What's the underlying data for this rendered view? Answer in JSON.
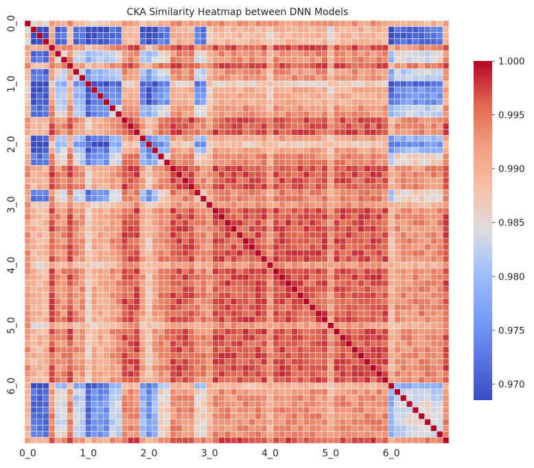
{
  "chart_data": {
    "type": "heatmap",
    "title": "CKA Similarity Heatmap between DNN Models",
    "x_tick_labels": [
      "0_0",
      "1_0",
      "2_0",
      "3_0",
      "4_0",
      "5_0",
      "6_0"
    ],
    "y_tick_labels": [
      "0_0",
      "1_0",
      "2_0",
      "3_0",
      "4_0",
      "5_0",
      "6_0"
    ],
    "n_models_per_group": 10,
    "n_rows": 70,
    "n_cols": 70,
    "colormap": "coolwarm",
    "colorbar": {
      "vmin": 0.9685,
      "vmax": 1.0,
      "ticks": [
        "0.970",
        "0.975",
        "0.980",
        "0.985",
        "0.990",
        "0.995",
        "1.000"
      ]
    },
    "grid_lines": true,
    "grid_line_color": "#ffffff",
    "colors": {
      "cmap_low": "#3b4cc0",
      "cmap_mid": "#dddddd",
      "cmap_high": "#b40426"
    }
  }
}
